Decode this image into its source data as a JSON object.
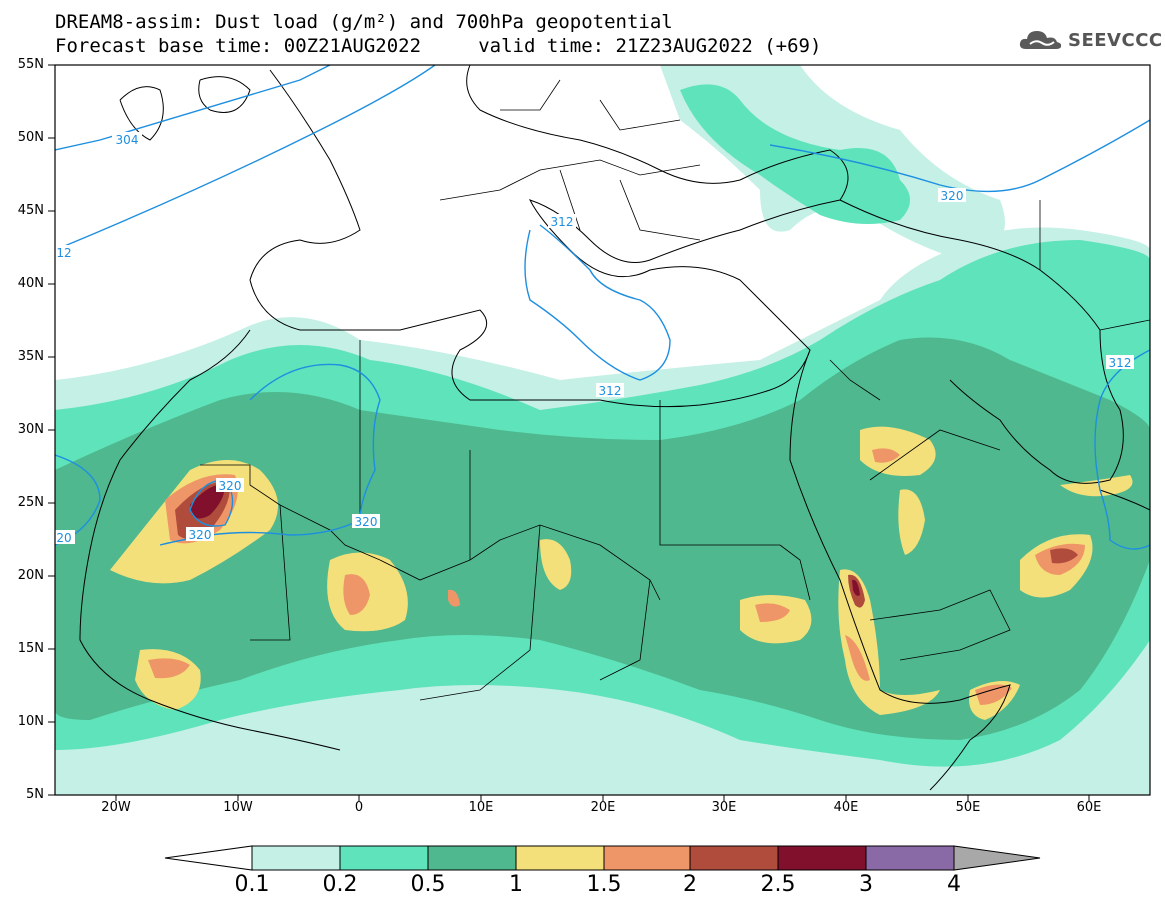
{
  "header": {
    "line1": "DREAM8-assim: Dust load (g/m²) and 700hPa geopotential",
    "line2": "Forecast base time: 00Z21AUG2022     valid time: 21Z23AUG2022 (+69)"
  },
  "logo": {
    "text": "SEEVCCC",
    "icon": "cloud-icon"
  },
  "map": {
    "lat_labels": [
      "55N",
      "50N",
      "45N",
      "40N",
      "35N",
      "30N",
      "25N",
      "20N",
      "15N",
      "10N",
      "5N"
    ],
    "lon_labels": [
      "20W",
      "10W",
      "0",
      "10E",
      "20E",
      "30E",
      "40E",
      "50E",
      "60E"
    ],
    "contour_labels": [
      "304",
      "12",
      "312",
      "312",
      "312",
      "320",
      "320",
      "320",
      "320",
      "20",
      "312",
      "320"
    ]
  },
  "colorbar": {
    "labels": [
      "0.1",
      "0.2",
      "0.5",
      "1",
      "1.5",
      "2",
      "2.5",
      "3",
      "4"
    ],
    "colors": [
      "#c4f0e6",
      "#5fe3bb",
      "#4fb88f",
      "#f4e07a",
      "#ef9668",
      "#b04c3c",
      "#80102c",
      "#8a6aa6",
      "#a8a8a8"
    ]
  }
}
